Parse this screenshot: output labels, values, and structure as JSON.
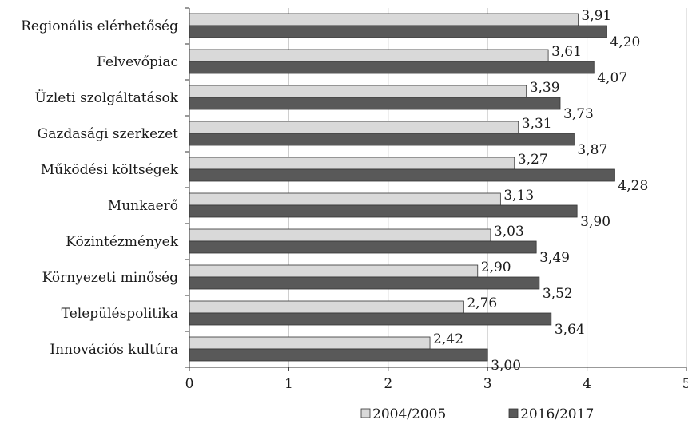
{
  "chart_data": {
    "type": "bar",
    "orientation": "horizontal",
    "categories": [
      "Regionális elérhetőség",
      "Felvevőpiac",
      "Üzleti szolgáltatások",
      "Gazdasági szerkezet",
      "Működési költségek",
      "Munkaerő",
      "Közintézmények",
      "Környezeti minőség",
      "Településpolitika",
      "Innovációs kultúra"
    ],
    "series": [
      {
        "name": "2004/2005",
        "color": "#d9d9d9",
        "values": [
          3.91,
          3.61,
          3.39,
          3.31,
          3.27,
          3.13,
          3.03,
          2.9,
          2.76,
          2.42
        ],
        "labels": [
          "3,91",
          "3,61",
          "3,39",
          "3,31",
          "3,27",
          "3,13",
          "3,03",
          "2,90",
          "2,76",
          "2,42"
        ]
      },
      {
        "name": "2016/2017",
        "color": "#595959",
        "values": [
          4.2,
          4.07,
          3.73,
          3.87,
          4.28,
          3.9,
          3.49,
          3.52,
          3.64,
          3.0
        ],
        "labels": [
          "4,20",
          "4,07",
          "3,73",
          "3,87",
          "4,28",
          "3,90",
          "3,49",
          "3,52",
          "3,64",
          "3,00"
        ]
      }
    ],
    "xlim": [
      0,
      5
    ],
    "xticks": [
      0,
      1,
      2,
      3,
      4,
      5
    ],
    "xtick_labels": [
      "0",
      "1",
      "2",
      "3",
      "4",
      "5"
    ],
    "grid": true,
    "legend_position": "bottom"
  }
}
